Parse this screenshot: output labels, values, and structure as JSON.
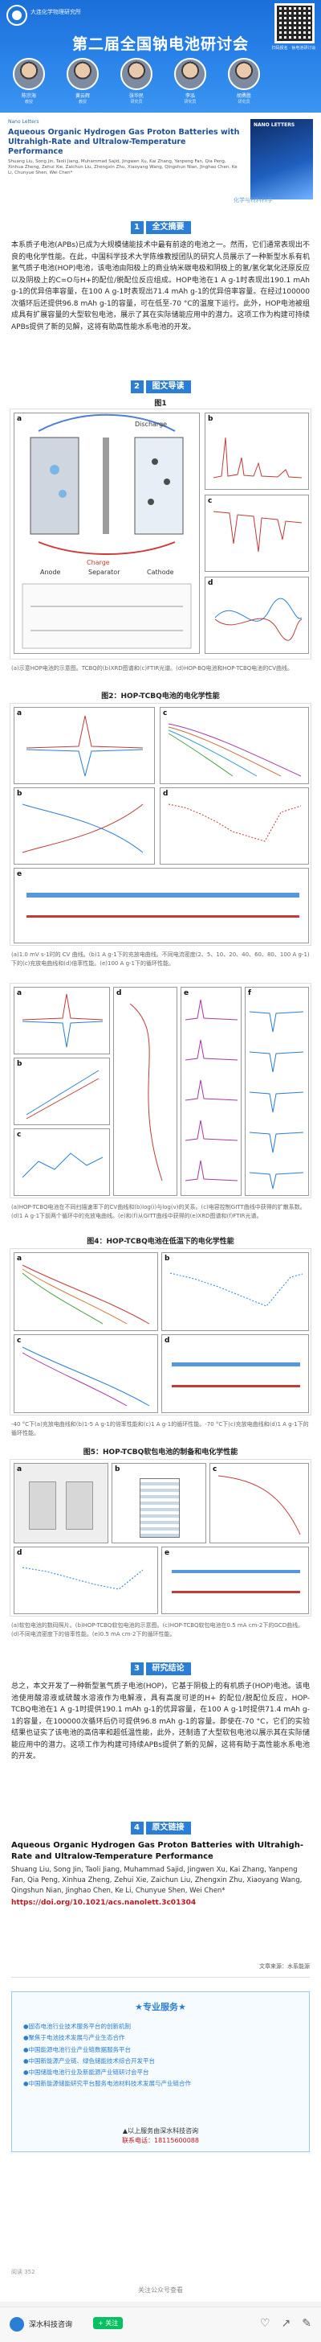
{
  "banner": {
    "org": "大连化学物理研究所",
    "title": "第二届全国钠电池研讨会",
    "qr_caption": "扫码报名 · 钠电池研讨会",
    "speakers": [
      {
        "name": "陈宗海",
        "aff": "教授"
      },
      {
        "name": "黄云辉",
        "aff": "教授"
      },
      {
        "name": "张华民",
        "aff": "研究员"
      },
      {
        "name": "李泓",
        "aff": "研究员"
      },
      {
        "name": "胡勇胜",
        "aff": "研究员"
      }
    ]
  },
  "paper": {
    "journal": "Nano Letters",
    "title": "Aqueous Organic Hydrogen Gas Proton Batteries with Ultrahigh-Rate and Ultralow-Temperature Performance",
    "authors": "Shuang Liu, Song Jin, Taoli Jiang, Muhammad Sajid, Jingwen Xu, Kai Zhang, Yanpeng Fan, Qia Peng, Xinhua Zheng, Zehui Xie, Zaichun Liu, Zhengxin Zhu, Xiaoyang Wang, Qingshun Nian, Jinghao Chen, Ke Li, Chunyue Shen, Wei Chen*",
    "cover_title": "NANO LETTERS",
    "watermark": "化学与材料科学"
  },
  "sections": {
    "s1": {
      "num": "1",
      "title": "全文摘要"
    },
    "s2": {
      "num": "2",
      "title": "图文导读"
    },
    "s3": {
      "num": "3",
      "title": "研究结论"
    },
    "s4": {
      "num": "4",
      "title": "原文链接"
    }
  },
  "abstract": "本系质子电池(APBs)已成为大规模储能技术中最有前途的电池之一。然而，它们通常表现出不良的电化学性能。在此，中国科学技术大学陈维教授团队的研究人员展示了一种新型水系有机氢气质子电池(HOP)电池，该电池由阳极上的商业纳米碳电极和阴极上的氢/氢化氧化还原反应以及阴极上的C=O与H+的配位/脱配位反应组成。HOP电池在1 A g-1时表现出190.1 mAh g-1的优异倍率容量，在100 A g-1时表现出71.4 mAh g-1的优异倍率容量。在经过100000次循环后还提供96.8 mAh g-1的容量，可在低至-70 °C的温度下运行。此外，HOP电池被组成具有扩展容量的大型软包电池，展示了其在实际储能应用中的潜力。这项工作为构建可持续APBs提供了新的见解，这将有助高性能水系电池的开发。",
  "fig1": {
    "title": "图1",
    "caption": "(a)示意HOP电池的示意图。TCBQ的(b)XRD图谱和(c)FTIR光谱。(d)HOP-BQ电池和HOP-TCBQ电池的CV曲线。",
    "panel_labels": [
      "a",
      "b",
      "c",
      "d"
    ],
    "text": {
      "discharge": "Discharge",
      "charge": "Charge",
      "anode": "Anode",
      "cathode": "Cathode",
      "separator": "Separator"
    }
  },
  "fig2": {
    "title": "图2：HOP-TCBQ电池的电化学性能",
    "caption": "(a)1.0 mV s-1时的 CV 曲线。(b)1 A g-1下的充放电曲线。不同电流密度(2、5、10、20、40、60、80、100 A g-1)下的(c)充放电曲线和(d)倍率性能。(e)100 A g-1下的循环性能。",
    "panel_labels": [
      "a",
      "b",
      "c",
      "d",
      "e"
    ]
  },
  "fig3": {
    "caption": "(a)HOP-TCBQ电池在不同扫描速率下的CV曲线和(b)log(i)与log(v)的关系。(c)电容控制GITT曲线中获得的扩散系数。(d)1 A g-1下前两个循环中的充放电曲线。(e)和(f)从GITT曲线中获得的(e)XRD图谱和(f)FTIR光谱。",
    "panel_labels": [
      "a",
      "b",
      "c",
      "d",
      "e",
      "f"
    ]
  },
  "fig4": {
    "title": "图4：HOP-TCBQ电池在低温下的电化学性能",
    "caption": "-40 °C下(a)充放电曲线和(b)1-5 A g-1的倍率性能和(c)1 A g-1的循环性能。-70 °C下(c)充放电曲线和(d)1 A g-1下的循环性能。",
    "panel_labels": [
      "a",
      "b",
      "c",
      "d"
    ]
  },
  "fig5": {
    "title": "图5：HOP-TCBQ软包电池的制备和电化学性能",
    "caption": "(a)软包电池的数码照片。(b)HOP-TCBQ软包电池的示意图。(c)HOP-TCBQ软包电池在0.5 mA cm-2下的GCD曲线。(d)不同电流密度下的倍率性能。(e)0.5 mA cm-2下的循环性能。",
    "panel_labels": [
      "a",
      "b",
      "c",
      "d",
      "e"
    ]
  },
  "conclusion": "总之，本文开发了一种新型氢气质子电池(HOP)，它基于阴极上的有机质子(HOP)电池。该电池使用酸溶液或硫酸水溶液作为电解液，具有高度可逆的H+ 的配位/脱配位反应，HOP-TCBQ电池在1 A g-1时提供190.1 mAh g-1的优异容量，在100 A g-1时提供71.4 mAh g-1的容量，在100000次循环后仍可提供96.8 mAh g-1的容量。即使在-70 °C，它们的实验结果也证实了该电池的高倍率和超低温性能，此外，还制造了大型软包电池以展示其在实际储能应用中的潜力。这项工作为构建可持续APBs提供了新的见解，这将有助于高性能水系电池的开发。",
  "reference": {
    "title": "Aqueous Organic Hydrogen Gas Proton Batteries with Ultrahigh-Rate and Ultralow-Temperature Performance",
    "authors": "Shuang Liu, Song Jin, Taoli Jiang, Muhammad Sajid, Jingwen Xu, Kai Zhang, Yanpeng Fan, Qia Peng, Xinhua Zheng, Zehui Xie, Zaichun Liu, Zhengxin Zhu, Xiaoyang Wang, Qingshun Nian, Jinghao Chen, Ke Li, Chunyue Shen, Wei Chen*",
    "doi": "https://doi.org/10.1021/acs.nanolett.3c01304"
  },
  "source": "文章来源：水系能源",
  "promo": {
    "head": "★专业服务★",
    "items": [
      "●固态电池行业技术服务平台的创新机制",
      "●聚焦于电池技术发展与产业生态合作",
      "●中国能源电池行业产业链数据服务平台",
      "●中国新能源产业链、绿色储能技术综合开发平台",
      "●中国储能电池行业及新能源产业链研讨会平台",
      "●中国新能源储能研究平台服务电池材料技术发展与产业链合作"
    ],
    "foot": "▲以上服务由深水科技咨询",
    "phone": "联系电话：18115600088"
  },
  "read_count": "阅读 352",
  "read_more": "关注公众号查看",
  "footer": {
    "name": "深水科技咨询",
    "follow": "+ 关注"
  }
}
